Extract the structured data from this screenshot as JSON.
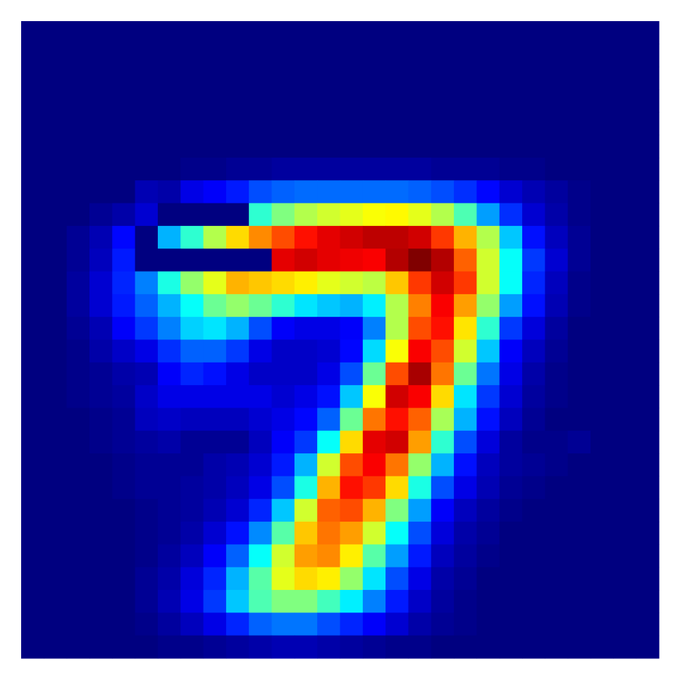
{
  "chart_data": {
    "type": "heatmap",
    "colormap": "jet",
    "vmin": 0,
    "vmax": 1,
    "axes_visible": false,
    "grid": false,
    "rows": 28,
    "cols": 28,
    "values": [
      [
        0,
        0,
        0,
        0,
        0,
        0,
        0,
        0,
        0,
        0,
        0,
        0,
        0,
        0,
        0,
        0,
        0,
        0,
        0,
        0,
        0,
        0,
        0,
        0,
        0,
        0,
        0,
        0
      ],
      [
        0,
        0,
        0,
        0,
        0,
        0,
        0,
        0,
        0,
        0,
        0,
        0,
        0,
        0,
        0,
        0,
        0,
        0,
        0,
        0,
        0,
        0,
        0,
        0,
        0,
        0,
        0,
        0
      ],
      [
        0,
        0,
        0,
        0,
        0,
        0,
        0,
        0,
        0,
        0,
        0,
        0,
        0,
        0,
        0,
        0,
        0,
        0,
        0,
        0,
        0,
        0,
        0,
        0,
        0,
        0,
        0,
        0
      ],
      [
        0,
        0,
        0,
        0,
        0,
        0,
        0,
        0,
        0,
        0,
        0,
        0,
        0,
        0,
        0,
        0,
        0,
        0,
        0,
        0,
        0,
        0,
        0,
        0,
        0,
        0,
        0,
        0
      ],
      [
        0,
        0,
        0,
        0,
        0,
        0,
        0,
        0,
        0,
        0,
        0,
        0,
        0,
        0,
        0,
        0,
        0,
        0,
        0,
        0,
        0,
        0,
        0,
        0,
        0,
        0,
        0,
        0
      ],
      [
        0,
        0,
        0,
        0,
        0,
        0,
        0,
        0,
        0,
        0,
        0,
        0,
        0,
        0,
        0,
        0,
        0,
        0,
        0,
        0,
        0,
        0,
        0,
        0,
        0,
        0,
        0,
        0
      ],
      [
        0,
        0,
        0,
        0,
        0,
        0,
        0,
        0.01,
        0.01,
        0.02,
        0.02,
        0.03,
        0.03,
        0.03,
        0.03,
        0.03,
        0.03,
        0.03,
        0.02,
        0.02,
        0.02,
        0.01,
        0.01,
        0,
        0,
        0,
        0,
        0
      ],
      [
        0,
        0,
        0,
        0,
        0,
        0.05,
        0.04,
        0.1,
        0.12,
        0.15,
        0.2,
        0.22,
        0.23,
        0.23,
        0.23,
        0.23,
        0.23,
        0.22,
        0.2,
        0.17,
        0.13,
        0.08,
        0.05,
        0.03,
        0.01,
        0,
        0,
        0
      ],
      [
        0,
        0,
        0,
        0.02,
        0.04,
        0.08,
        0,
        0,
        0,
        0,
        0.42,
        0.5,
        0.55,
        0.58,
        0.6,
        0.62,
        0.63,
        0.6,
        0.55,
        0.45,
        0.28,
        0.17,
        0.08,
        0.04,
        0.01,
        0,
        0,
        0
      ],
      [
        0,
        0,
        0.02,
        0.05,
        0.13,
        0,
        0.3,
        0.42,
        0.55,
        0.66,
        0.74,
        0.8,
        0.86,
        0.9,
        0.92,
        0.94,
        0.94,
        0.92,
        0.82,
        0.7,
        0.55,
        0.32,
        0.14,
        0.06,
        0.02,
        0,
        0,
        0
      ],
      [
        0,
        0,
        0.02,
        0.06,
        0.15,
        0,
        0,
        0,
        0,
        0,
        0,
        0.9,
        0.92,
        0.9,
        0.89,
        0.88,
        0.95,
        1,
        0.95,
        0.78,
        0.58,
        0.38,
        0.18,
        0.08,
        0.02,
        0,
        0,
        0
      ],
      [
        0,
        0,
        0.03,
        0.08,
        0.16,
        0.25,
        0.4,
        0.52,
        0.6,
        0.7,
        0.68,
        0.66,
        0.64,
        0.6,
        0.58,
        0.56,
        0.68,
        0.82,
        0.92,
        0.82,
        0.58,
        0.38,
        0.16,
        0.06,
        0.01,
        0,
        0,
        0
      ],
      [
        0,
        0,
        0.03,
        0.08,
        0.15,
        0.22,
        0.3,
        0.38,
        0.48,
        0.52,
        0.48,
        0.42,
        0.35,
        0.32,
        0.3,
        0.36,
        0.55,
        0.75,
        0.88,
        0.72,
        0.52,
        0.28,
        0.14,
        0.05,
        0.01,
        0,
        0,
        0
      ],
      [
        0,
        0,
        0.02,
        0.05,
        0.12,
        0.18,
        0.25,
        0.33,
        0.35,
        0.3,
        0.2,
        0.12,
        0.1,
        0.1,
        0.12,
        0.25,
        0.55,
        0.8,
        0.86,
        0.65,
        0.42,
        0.18,
        0.09,
        0.03,
        0,
        0,
        0,
        0
      ],
      [
        0,
        0,
        0.01,
        0.04,
        0.07,
        0.1,
        0.17,
        0.22,
        0.22,
        0.18,
        0.1,
        0.07,
        0.07,
        0.08,
        0.13,
        0.34,
        0.62,
        0.88,
        0.8,
        0.58,
        0.32,
        0.12,
        0.06,
        0.02,
        0,
        0,
        0,
        0
      ],
      [
        0,
        0,
        0.01,
        0.02,
        0.04,
        0.05,
        0.12,
        0.16,
        0.14,
        0.1,
        0.07,
        0.07,
        0.07,
        0.1,
        0.2,
        0.48,
        0.8,
        0.96,
        0.76,
        0.48,
        0.24,
        0.1,
        0.04,
        0.01,
        0,
        0,
        0,
        0
      ],
      [
        0,
        0,
        0.01,
        0.02,
        0.03,
        0.07,
        0.1,
        0.1,
        0.1,
        0.1,
        0.1,
        0.08,
        0.1,
        0.14,
        0.32,
        0.62,
        0.92,
        0.88,
        0.66,
        0.35,
        0.18,
        0.08,
        0.03,
        0.01,
        0,
        0,
        0,
        0
      ],
      [
        0,
        0,
        0,
        0.01,
        0.02,
        0.06,
        0.07,
        0.06,
        0.06,
        0.06,
        0.08,
        0.1,
        0.13,
        0.22,
        0.48,
        0.76,
        0.86,
        0.78,
        0.54,
        0.3,
        0.14,
        0.06,
        0.02,
        0,
        0,
        0,
        0,
        0
      ],
      [
        0,
        0,
        0,
        0.01,
        0.02,
        0.03,
        0.04,
        0.02,
        0.02,
        0.02,
        0.06,
        0.12,
        0.18,
        0.38,
        0.66,
        0.9,
        0.92,
        0.72,
        0.42,
        0.2,
        0.09,
        0.03,
        0.01,
        0.01,
        0.02,
        0,
        0,
        0
      ],
      [
        0,
        0,
        0,
        0,
        0.01,
        0.02,
        0.02,
        0.02,
        0.04,
        0.05,
        0.08,
        0.15,
        0.3,
        0.58,
        0.8,
        0.88,
        0.76,
        0.52,
        0.3,
        0.14,
        0.06,
        0.03,
        0.02,
        0.01,
        0,
        0,
        0,
        0
      ],
      [
        0,
        0,
        0,
        0,
        0.01,
        0.02,
        0.02,
        0.03,
        0.04,
        0.06,
        0.1,
        0.2,
        0.4,
        0.7,
        0.86,
        0.82,
        0.66,
        0.4,
        0.2,
        0.1,
        0.05,
        0.02,
        0.01,
        0,
        0,
        0,
        0,
        0
      ],
      [
        0,
        0,
        0,
        0,
        0,
        0.01,
        0.02,
        0.03,
        0.05,
        0.08,
        0.16,
        0.32,
        0.58,
        0.78,
        0.8,
        0.7,
        0.5,
        0.28,
        0.12,
        0.06,
        0.03,
        0.01,
        0,
        0,
        0,
        0,
        0,
        0
      ],
      [
        0,
        0,
        0,
        0,
        0,
        0.01,
        0.02,
        0.04,
        0.08,
        0.14,
        0.26,
        0.46,
        0.68,
        0.76,
        0.72,
        0.58,
        0.38,
        0.2,
        0.09,
        0.04,
        0.02,
        0,
        0,
        0,
        0,
        0,
        0,
        0
      ],
      [
        0,
        0,
        0,
        0,
        0,
        0.01,
        0.03,
        0.06,
        0.12,
        0.22,
        0.38,
        0.58,
        0.72,
        0.74,
        0.64,
        0.46,
        0.28,
        0.15,
        0.06,
        0.03,
        0.01,
        0,
        0,
        0,
        0,
        0,
        0,
        0
      ],
      [
        0,
        0,
        0,
        0,
        0,
        0.02,
        0.04,
        0.09,
        0.16,
        0.3,
        0.46,
        0.6,
        0.66,
        0.64,
        0.52,
        0.35,
        0.2,
        0.1,
        0.04,
        0.02,
        0,
        0,
        0,
        0,
        0,
        0,
        0,
        0
      ],
      [
        0,
        0,
        0,
        0,
        0,
        0.02,
        0.05,
        0.1,
        0.18,
        0.32,
        0.45,
        0.5,
        0.5,
        0.44,
        0.36,
        0.25,
        0.15,
        0.07,
        0.03,
        0.01,
        0,
        0,
        0,
        0,
        0,
        0,
        0,
        0
      ],
      [
        0,
        0,
        0,
        0,
        0,
        0.01,
        0.03,
        0.06,
        0.1,
        0.16,
        0.22,
        0.24,
        0.24,
        0.2,
        0.16,
        0.12,
        0.08,
        0.04,
        0.02,
        0.01,
        0,
        0,
        0,
        0,
        0,
        0,
        0,
        0
      ],
      [
        0,
        0,
        0,
        0,
        0,
        0,
        0.01,
        0.01,
        0.02,
        0.03,
        0.04,
        0.05,
        0.05,
        0.04,
        0.03,
        0.02,
        0.01,
        0.01,
        0,
        0,
        0,
        0,
        0,
        0,
        0,
        0,
        0,
        0
      ]
    ]
  }
}
